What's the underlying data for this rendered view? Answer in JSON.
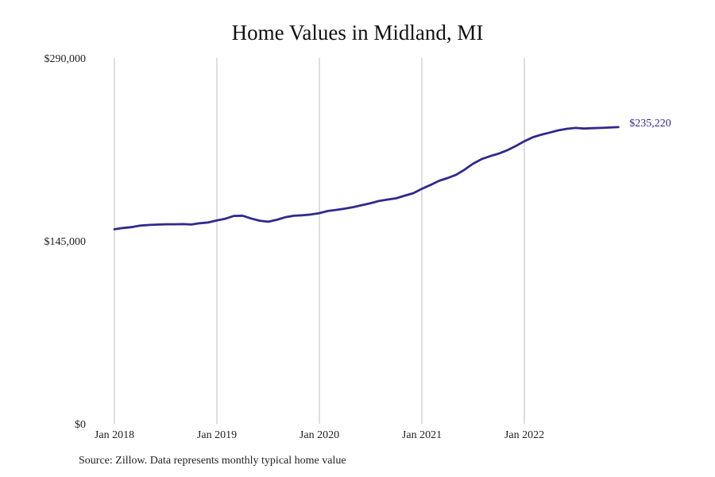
{
  "chart_data": {
    "type": "line",
    "title": "Home Values in Midland, MI",
    "ylim": [
      0,
      290000
    ],
    "y_ticks": [
      {
        "value": 0,
        "label": "$0"
      },
      {
        "value": 145000,
        "label": "$145,000"
      },
      {
        "value": 290000,
        "label": "$290,000"
      }
    ],
    "x_ticks": [
      {
        "date": "2018-01",
        "label": "Jan 2018"
      },
      {
        "date": "2019-01",
        "label": "Jan 2019"
      },
      {
        "date": "2020-01",
        "label": "Jan 2020"
      },
      {
        "date": "2021-01",
        "label": "Jan 2021"
      },
      {
        "date": "2022-01",
        "label": "Jan 2022"
      }
    ],
    "grid": "vertical",
    "line_color": "#2e2a8c",
    "end_label": "$235,220",
    "series": [
      {
        "x": [
          "2018-01",
          "2018-02",
          "2018-03",
          "2018-04",
          "2018-05",
          "2018-06",
          "2018-07",
          "2018-08",
          "2018-09",
          "2018-10",
          "2018-11",
          "2018-12",
          "2019-01",
          "2019-02",
          "2019-03",
          "2019-04",
          "2019-05",
          "2019-06",
          "2019-07",
          "2019-08",
          "2019-09",
          "2019-10",
          "2019-11",
          "2019-12",
          "2020-01",
          "2020-02",
          "2020-03",
          "2020-04",
          "2020-05",
          "2020-06",
          "2020-07",
          "2020-08",
          "2020-09",
          "2020-10",
          "2020-11",
          "2020-12",
          "2021-01",
          "2021-02",
          "2021-03",
          "2021-04",
          "2021-05",
          "2021-06",
          "2021-07",
          "2021-08",
          "2021-09",
          "2021-10",
          "2021-11",
          "2021-12",
          "2022-01",
          "2022-02",
          "2022-03",
          "2022-04",
          "2022-05",
          "2022-06",
          "2022-07",
          "2022-08",
          "2022-09",
          "2022-10",
          "2022-11",
          "2022-12"
        ],
        "values": [
          154200,
          155200,
          155900,
          157100,
          157600,
          157900,
          158200,
          158200,
          158300,
          158000,
          159000,
          159600,
          161200,
          162600,
          164800,
          165000,
          162800,
          161000,
          160200,
          161700,
          163700,
          164900,
          165300,
          165900,
          167000,
          168700,
          169600,
          170600,
          171800,
          173400,
          174900,
          176700,
          177800,
          178800,
          180900,
          182800,
          186300,
          189300,
          192600,
          194800,
          197400,
          201500,
          206200,
          209900,
          212200,
          214200,
          216900,
          220300,
          224000,
          227200,
          229200,
          230900,
          232700,
          233900,
          234600,
          234100,
          234400,
          234600,
          234900,
          235220
        ]
      }
    ]
  },
  "footer": {
    "source": "Source: Zillow. Data represents monthly typical home value"
  }
}
